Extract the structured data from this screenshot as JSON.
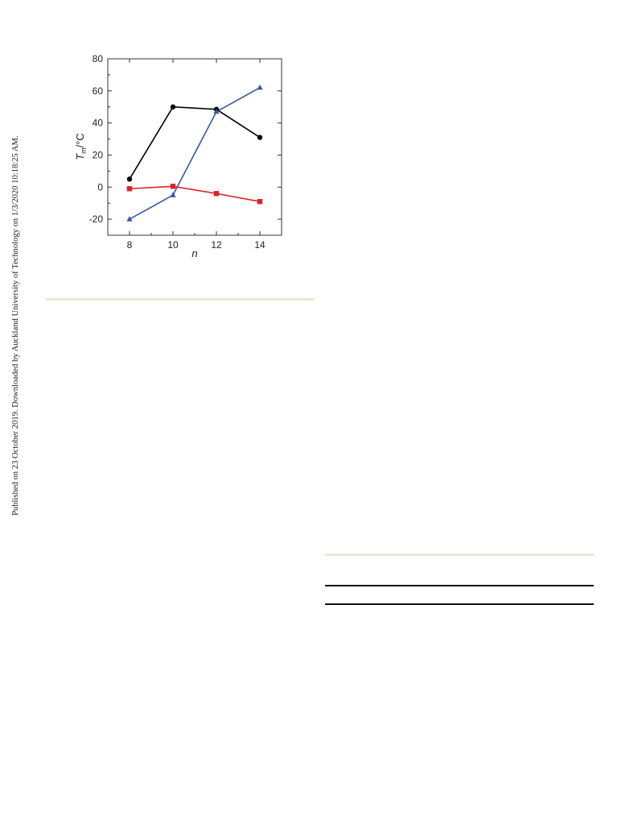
{
  "side_note": "Published on 23 October 2019. Downloaded by Auckland University of Technology on 1/3/2020 10:18:25 AM.",
  "chart_data": {
    "type": "line",
    "x": [
      8,
      10,
      12,
      14
    ],
    "xticks": [
      8,
      10,
      12,
      14
    ],
    "xlim": [
      7,
      15
    ],
    "yticks": [
      -20,
      0,
      20,
      40,
      60,
      80
    ],
    "ylim": [
      -30,
      80
    ],
    "xlabel": "n",
    "ylabel_main": "T",
    "ylabel_sub": "m",
    "ylabel_unit": "/°C",
    "grid": false,
    "series": [
      {
        "color": "#000000",
        "marker": "circle",
        "values": [
          5,
          50,
          48.5,
          31
        ]
      },
      {
        "color": "#dd2222",
        "marker": "square",
        "values": [
          -1,
          0.5,
          -4,
          -9
        ]
      },
      {
        "color": "#3b55a8",
        "marker": "triangle",
        "values": [
          -20,
          -5,
          47,
          62
        ]
      }
    ]
  }
}
